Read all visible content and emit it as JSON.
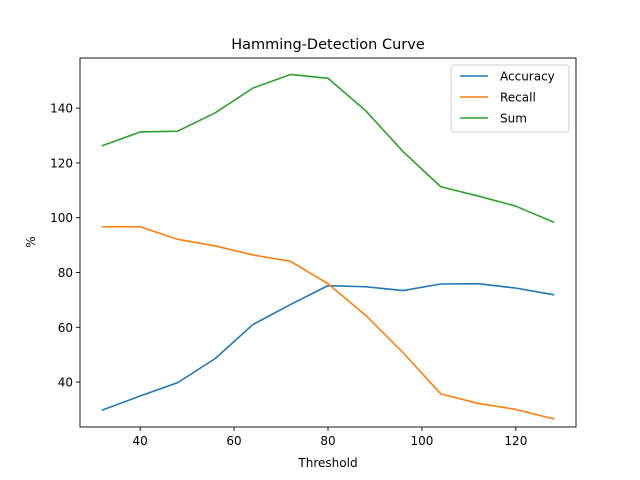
{
  "chart_data": {
    "type": "line",
    "title": "Hamming-Detection Curve",
    "xlabel": "Threshold",
    "ylabel": "%",
    "x": [
      32,
      40,
      48,
      56,
      64,
      72,
      80,
      88,
      96,
      104,
      112,
      120,
      128
    ],
    "xlim": [
      27.2,
      132.8
    ],
    "ylim": [
      23.6,
      158.3
    ],
    "xticks": [
      40,
      60,
      80,
      100,
      120
    ],
    "yticks": [
      40,
      60,
      80,
      100,
      120,
      140
    ],
    "grid": false,
    "legend_position": "top-right",
    "series": [
      {
        "name": "Accuracy",
        "color": "#1f77b4",
        "values": [
          29.8,
          34.9,
          39.8,
          48.6,
          61.0,
          68.3,
          75.2,
          74.8,
          73.4,
          75.8,
          75.9,
          74.3,
          71.9
        ]
      },
      {
        "name": "Recall",
        "color": "#ff7f0e",
        "values": [
          96.7,
          96.7,
          92.1,
          89.7,
          86.4,
          84.1,
          75.9,
          64.4,
          50.7,
          35.7,
          32.2,
          30.0,
          26.6
        ]
      },
      {
        "name": "Sum",
        "color": "#2ca02c",
        "values": [
          126.3,
          131.3,
          131.6,
          138.3,
          147.3,
          152.3,
          150.9,
          139.1,
          124.1,
          111.3,
          107.9,
          104.2,
          98.4
        ]
      }
    ]
  }
}
